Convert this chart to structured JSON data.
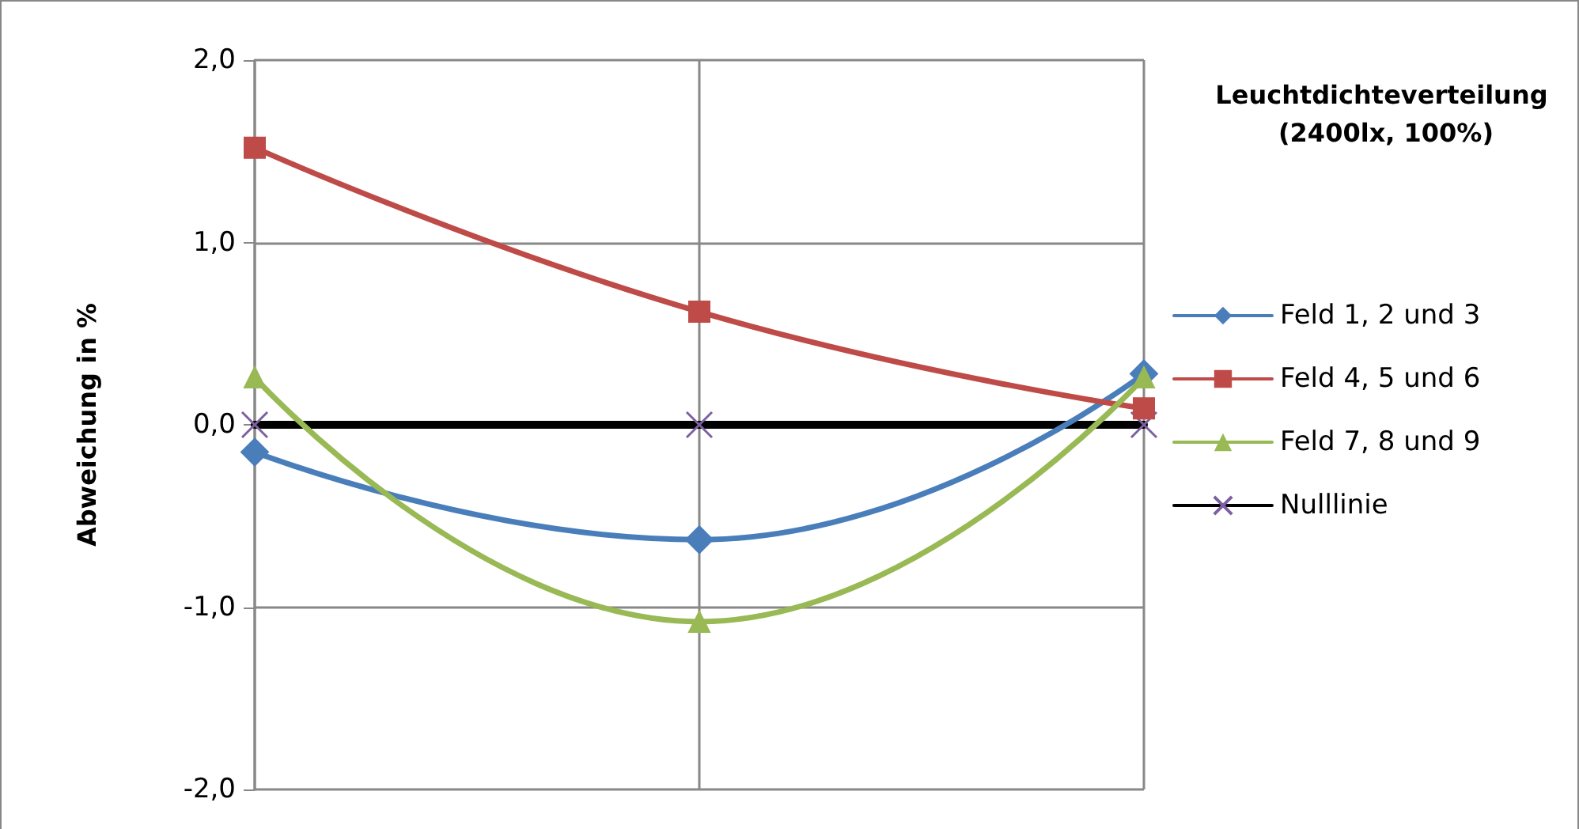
{
  "chart_data": {
    "type": "line",
    "title": "Leuchtdichteverteilung (2400lx, 100%)",
    "ylabel": "Abweichung in %",
    "categories": [
      null,
      null,
      null
    ],
    "series": [
      {
        "name": "Feld 1, 2 und 3",
        "color": "#4a7ebb",
        "marker": "diamond",
        "values": [
          -0.15,
          -0.63,
          0.28
        ]
      },
      {
        "name": "Feld 4, 5 und 6",
        "color": "#be4b48",
        "marker": "square",
        "values": [
          1.52,
          0.62,
          0.09
        ]
      },
      {
        "name": "Feld 7, 8 und 9",
        "color": "#98b954",
        "marker": "triangle",
        "values": [
          0.26,
          -1.08,
          0.26
        ]
      },
      {
        "name": "Nulllinie",
        "color": "#000000",
        "marker": "cross",
        "colors": [
          "#7d60a0",
          "#7d60a0",
          "#7d60a0"
        ],
        "values": [
          0,
          0,
          0
        ]
      }
    ],
    "ylim": [
      -2,
      2
    ],
    "yticks": [
      {
        "value": -2,
        "label": "-2,0"
      },
      {
        "value": -1,
        "label": "-1,0"
      },
      {
        "value": 0,
        "label": "0,0"
      },
      {
        "value": 1,
        "label": "1,0"
      },
      {
        "value": 2,
        "label": "2,0"
      }
    ],
    "grid": true,
    "legend": "right"
  }
}
